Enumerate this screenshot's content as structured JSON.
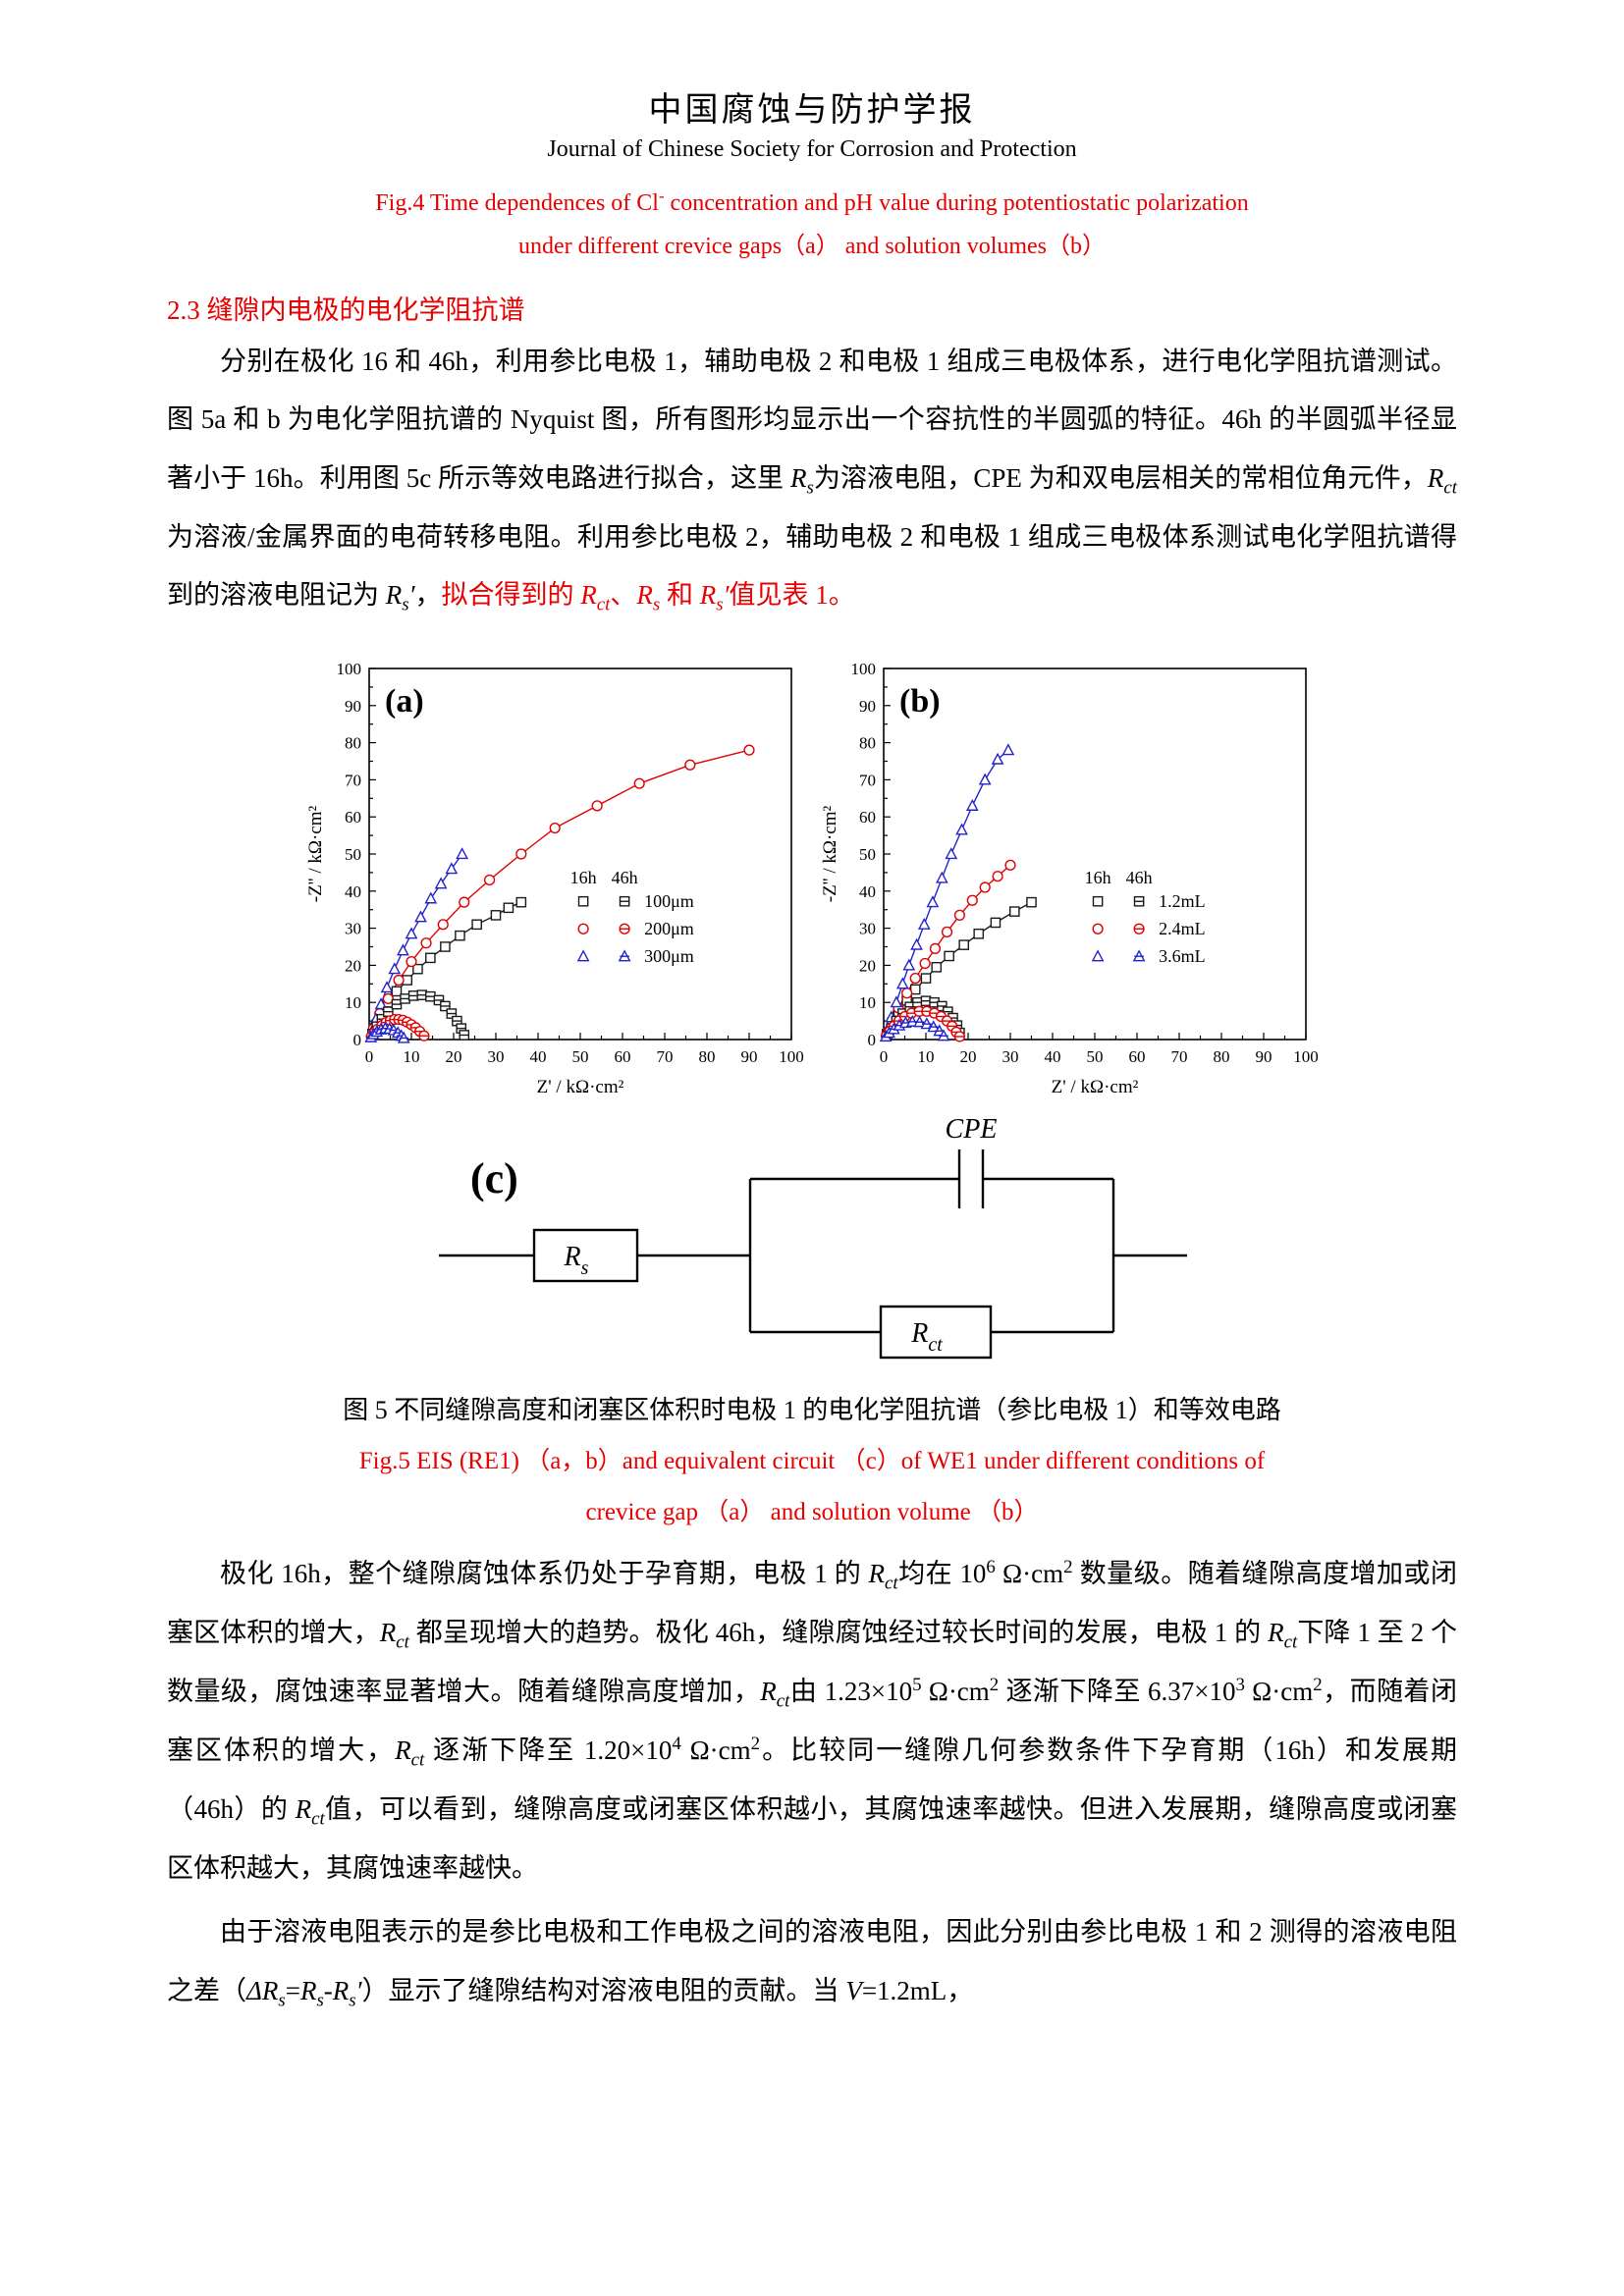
{
  "header": {
    "title_zh": "中国腐蚀与防护学报",
    "title_en": "Journal of Chinese Society for Corrosion and Protection"
  },
  "fig4_caption": {
    "line1": "Fig.4 Time dependences of Cl<sup>-</sup> concentration and pH value during potentiostatic polarization",
    "line2": "under different crevice gaps（a） and solution volumes（b）"
  },
  "section": {
    "number_title": "2.3 缝隙内电极的电化学阻抗谱"
  },
  "paragraphs": {
    "p1": "分别在极化 16 和 46h，利用参比电极 1，辅助电极 2 和电极 1 组成三电极体系，进行电化学阻抗谱测试。图 5a 和 b 为电化学阻抗谱的 Nyquist 图，所有图形均显示出一个容抗性的半圆弧的特征。46h 的半圆弧半径显著小于 16h。利用图 5c 所示等效电路进行拟合，这里 <i>R<sub>s</sub></i>为溶液电阻，CPE 为和双电层相关的常相位角元件，<i>R<sub>ct</sub></i>为溶液/金属界面的电荷转移电阻。利用参比电极 2，辅助电极 2 和电极 1 组成三电极体系测试电化学阻抗谱得到的溶液电阻记为 <i>R<sub>s</sub>′</i>，<span class=\"red\">拟合得到的 <i>R<sub>ct</sub></i>、<i>R<sub>s</sub></i> 和 <i>R<sub>s</sub>′</i>值见表 1。</span>",
    "p2": "极化 16h，整个缝隙腐蚀体系仍处于孕育期，电极 1 的 <i>R<sub>ct</sub></i>均在 10<sup>6</sup> Ω·cm<sup>2</sup> 数量级。随着缝隙高度增加或闭塞区体积的增大，<i>R<sub>ct</sub></i> 都呈现增大的趋势。极化 46h，缝隙腐蚀经过较长时间的发展，电极 1 的 <i>R<sub>ct</sub></i>下降 1 至 2 个数量级，腐蚀速率显著增大。随着缝隙高度增加，<i>R<sub>ct</sub></i>由 1.23×10<sup>5</sup> Ω·cm<sup>2</sup> 逐渐下降至 6.37×10<sup>3</sup> Ω·cm<sup>2</sup>，而随着闭塞区体积的增大，<i>R<sub>ct</sub></i> 逐渐下降至 1.20×10<sup>4</sup> Ω·cm<sup>2</sup>。比较同一缝隙几何参数条件下孕育期（16h）和发展期（46h）的 <i>R<sub>ct</sub></i>值，可以看到，缝隙高度或闭塞区体积越小，其腐蚀速率越快。但进入发展期，缝隙高度或闭塞区体积越大，其腐蚀速率越快。",
    "p3": "由于溶液电阻表示的是参比电极和工作电极之间的溶液电阻，因此分别由参比电极 1 和 2 测得的溶液电阻之差（<i>ΔR<sub>s</sub></i>=<i>R<sub>s</sub></i>-<i>R<sub>s</sub>′</i>）显示了缝隙结构对溶液电阻的贡献。当 <i>V</i>=1.2mL，"
  },
  "fig5": {
    "caption_zh": "图 5 不同缝隙高度和闭塞区体积时电极 1 的电化学阻抗谱（参比电极 1）和等效电路",
    "caption_en_line1": "Fig.5 EIS (RE1) （a，b）and equivalent circuit （c）of WE1 under different conditions of",
    "caption_en_line2": "crevice gap （a） and solution volume （b）"
  },
  "colors": {
    "accent_red": "#e60000",
    "series_black": "#1a1a1a",
    "series_red": "#e00000",
    "series_blue": "#2323cc"
  },
  "circuit": {
    "panel_label": "(c)",
    "cpe_label": "CPE",
    "rs_main": "R",
    "rs_sub": "s",
    "rct_main": "R",
    "rct_sub": "ct"
  },
  "chart_data": [
    {
      "type": "scatter",
      "panel_label": "(a)",
      "xlabel": "Z' / kΩ·cm²",
      "ylabel": "-Z'' / kΩ·cm²",
      "xlim": [
        0,
        100
      ],
      "ylim": [
        0,
        100
      ],
      "xticks": [
        0,
        10,
        20,
        30,
        40,
        50,
        60,
        70,
        80,
        90,
        100
      ],
      "yticks": [
        0,
        10,
        20,
        30,
        40,
        50,
        60,
        70,
        80,
        90,
        100
      ],
      "minor_step": 5,
      "grid": false,
      "legend": {
        "headers": [
          "16h",
          "46h"
        ],
        "pos": [
          0.47,
          0.58
        ],
        "rows": [
          {
            "label": "100μm",
            "shape": "square",
            "color": "#1a1a1a"
          },
          {
            "label": "200μm",
            "shape": "circle",
            "color": "#e00000"
          },
          {
            "label": "300μm",
            "shape": "triangle",
            "color": "#2323cc"
          }
        ]
      },
      "series": [
        {
          "name": "100μm 16h",
          "shape": "square",
          "crossed": false,
          "color": "#1a1a1a",
          "points": [
            [
              0.8,
              1.5
            ],
            [
              1.8,
              4
            ],
            [
              3,
              7
            ],
            [
              4.5,
              10
            ],
            [
              6.5,
              13
            ],
            [
              9,
              16
            ],
            [
              11.5,
              19
            ],
            [
              14.5,
              22
            ],
            [
              18,
              25
            ],
            [
              21.5,
              28
            ],
            [
              25.5,
              31
            ],
            [
              30,
              33.5
            ],
            [
              33,
              35.5
            ],
            [
              36,
              37
            ]
          ]
        },
        {
          "name": "200μm 16h",
          "shape": "circle",
          "crossed": false,
          "color": "#e00000",
          "points": [
            [
              1,
              3
            ],
            [
              2.5,
              7
            ],
            [
              4.5,
              11
            ],
            [
              7,
              16
            ],
            [
              10,
              21
            ],
            [
              13.5,
              26
            ],
            [
              17.5,
              31
            ],
            [
              22.5,
              37
            ],
            [
              28.5,
              43
            ],
            [
              36,
              50
            ],
            [
              44,
              57
            ],
            [
              54,
              63
            ],
            [
              64,
              69
            ],
            [
              76,
              74
            ],
            [
              90,
              78
            ]
          ]
        },
        {
          "name": "300μm 16h",
          "shape": "triangle",
          "crossed": false,
          "color": "#2323cc",
          "points": [
            [
              0.8,
              2.5
            ],
            [
              1.6,
              5.5
            ],
            [
              2.8,
              9.5
            ],
            [
              4.2,
              14
            ],
            [
              6,
              19
            ],
            [
              8,
              24
            ],
            [
              10,
              28.5
            ],
            [
              12.2,
              33
            ],
            [
              14.6,
              38
            ],
            [
              17,
              42
            ],
            [
              19.5,
              46
            ],
            [
              22,
              50
            ]
          ]
        },
        {
          "name": "100μm 46h",
          "shape": "square",
          "crossed": true,
          "color": "#1a1a1a",
          "points": [
            [
              0.8,
              1.5
            ],
            [
              1.8,
              3.5
            ],
            [
              3,
              5.5
            ],
            [
              4.5,
              7.5
            ],
            [
              6.5,
              9.5
            ],
            [
              8.5,
              11
            ],
            [
              10.5,
              11.8
            ],
            [
              12.5,
              12
            ],
            [
              14.5,
              11.6
            ],
            [
              16.5,
              10.6
            ],
            [
              18,
              9
            ],
            [
              19.5,
              7
            ],
            [
              20.8,
              5
            ],
            [
              21.8,
              3
            ],
            [
              22.5,
              1.2
            ]
          ]
        },
        {
          "name": "200μm 46h",
          "shape": "circle",
          "crossed": true,
          "color": "#e00000",
          "points": [
            [
              0.5,
              0.8
            ],
            [
              1.2,
              1.8
            ],
            [
              2,
              2.8
            ],
            [
              3,
              3.8
            ],
            [
              4,
              4.6
            ],
            [
              5,
              5.1
            ],
            [
              6,
              5.4
            ],
            [
              7,
              5.4
            ],
            [
              8,
              5.2
            ],
            [
              9,
              4.7
            ],
            [
              10,
              4
            ],
            [
              11,
              3.2
            ],
            [
              12,
              2.2
            ],
            [
              13,
              1
            ]
          ]
        },
        {
          "name": "300μm 46h",
          "shape": "triangle",
          "crossed": true,
          "color": "#2323cc",
          "points": [
            [
              0.4,
              0.6
            ],
            [
              1,
              1.4
            ],
            [
              1.8,
              2.1
            ],
            [
              2.8,
              2.7
            ],
            [
              3.8,
              3
            ],
            [
              4.8,
              2.9
            ],
            [
              5.8,
              2.5
            ],
            [
              6.8,
              1.8
            ],
            [
              7.6,
              1
            ],
            [
              8.2,
              0.4
            ]
          ]
        }
      ]
    },
    {
      "type": "scatter",
      "panel_label": "(b)",
      "xlabel": "Z' / kΩ·cm²",
      "ylabel": "-Z'' / kΩ·cm²",
      "xlim": [
        0,
        100
      ],
      "ylim": [
        0,
        100
      ],
      "xticks": [
        0,
        10,
        20,
        30,
        40,
        50,
        60,
        70,
        80,
        90,
        100
      ],
      "yticks": [
        0,
        10,
        20,
        30,
        40,
        50,
        60,
        70,
        80,
        90,
        100
      ],
      "minor_step": 5,
      "grid": false,
      "legend": {
        "headers": [
          "16h",
          "46h"
        ],
        "pos": [
          0.47,
          0.58
        ],
        "rows": [
          {
            "label": "1.2mL",
            "shape": "square",
            "color": "#1a1a1a"
          },
          {
            "label": "2.4mL",
            "shape": "circle",
            "color": "#e00000"
          },
          {
            "label": "3.6mL",
            "shape": "triangle",
            "color": "#2323cc"
          }
        ]
      },
      "series": [
        {
          "name": "1.2mL 16h",
          "shape": "square",
          "crossed": false,
          "color": "#1a1a1a",
          "points": [
            [
              0.8,
              1.5
            ],
            [
              2,
              4.5
            ],
            [
              3.5,
              7.5
            ],
            [
              5.5,
              10.5
            ],
            [
              7.5,
              13.5
            ],
            [
              10,
              16.5
            ],
            [
              12.5,
              19.5
            ],
            [
              15.5,
              22.5
            ],
            [
              19,
              25.5
            ],
            [
              22.5,
              28.5
            ],
            [
              26.5,
              31.5
            ],
            [
              31,
              34.5
            ],
            [
              35,
              37
            ]
          ]
        },
        {
          "name": "2.4mL 16h",
          "shape": "circle",
          "crossed": false,
          "color": "#e00000",
          "points": [
            [
              0.8,
              2
            ],
            [
              2,
              5
            ],
            [
              3.5,
              8.5
            ],
            [
              5.5,
              12.5
            ],
            [
              7.5,
              16.5
            ],
            [
              9.8,
              20.5
            ],
            [
              12.2,
              24.5
            ],
            [
              15,
              29
            ],
            [
              18,
              33.5
            ],
            [
              21,
              37.5
            ],
            [
              24,
              41
            ],
            [
              27,
              44
            ],
            [
              30,
              47
            ]
          ]
        },
        {
          "name": "3.6mL 16h",
          "shape": "triangle",
          "crossed": false,
          "color": "#2323cc",
          "points": [
            [
              0.8,
              2.5
            ],
            [
              1.8,
              6
            ],
            [
              3,
              10
            ],
            [
              4.5,
              15
            ],
            [
              6,
              20
            ],
            [
              7.8,
              25.5
            ],
            [
              9.6,
              31
            ],
            [
              11.6,
              37
            ],
            [
              13.8,
              43.5
            ],
            [
              16,
              50
            ],
            [
              18.5,
              56.5
            ],
            [
              21,
              63
            ],
            [
              24,
              70
            ],
            [
              27,
              75.5
            ],
            [
              29.5,
              78
            ]
          ]
        },
        {
          "name": "1.2mL 46h",
          "shape": "square",
          "crossed": true,
          "color": "#1a1a1a",
          "points": [
            [
              0.8,
              1.2
            ],
            [
              1.8,
              3
            ],
            [
              3,
              5
            ],
            [
              4.5,
              7
            ],
            [
              6.2,
              8.8
            ],
            [
              8,
              10
            ],
            [
              10,
              10.4
            ],
            [
              12,
              10
            ],
            [
              13.8,
              9
            ],
            [
              15.2,
              7.5
            ],
            [
              16.4,
              5.8
            ],
            [
              17.4,
              3.8
            ],
            [
              18,
              1.8
            ]
          ]
        },
        {
          "name": "2.4mL 46h",
          "shape": "circle",
          "crossed": true,
          "color": "#e00000",
          "points": [
            [
              0.6,
              1
            ],
            [
              1.4,
              2.2
            ],
            [
              2.4,
              3.6
            ],
            [
              3.6,
              5
            ],
            [
              5,
              6.2
            ],
            [
              6.6,
              7.1
            ],
            [
              8.4,
              7.6
            ],
            [
              10.2,
              7.6
            ],
            [
              12,
              7.1
            ],
            [
              13.6,
              6.2
            ],
            [
              15,
              5
            ],
            [
              16.2,
              3.6
            ],
            [
              17.2,
              2
            ],
            [
              18,
              0.8
            ]
          ]
        },
        {
          "name": "3.6mL 46h",
          "shape": "triangle",
          "crossed": true,
          "color": "#2323cc",
          "points": [
            [
              0.5,
              0.8
            ],
            [
              1.3,
              1.8
            ],
            [
              2.4,
              2.8
            ],
            [
              3.7,
              3.8
            ],
            [
              5.2,
              4.5
            ],
            [
              6.8,
              4.8
            ],
            [
              8.5,
              4.7
            ],
            [
              10.2,
              4.2
            ],
            [
              11.8,
              3.4
            ],
            [
              13.2,
              2.3
            ],
            [
              14.2,
              1
            ]
          ]
        }
      ]
    }
  ]
}
